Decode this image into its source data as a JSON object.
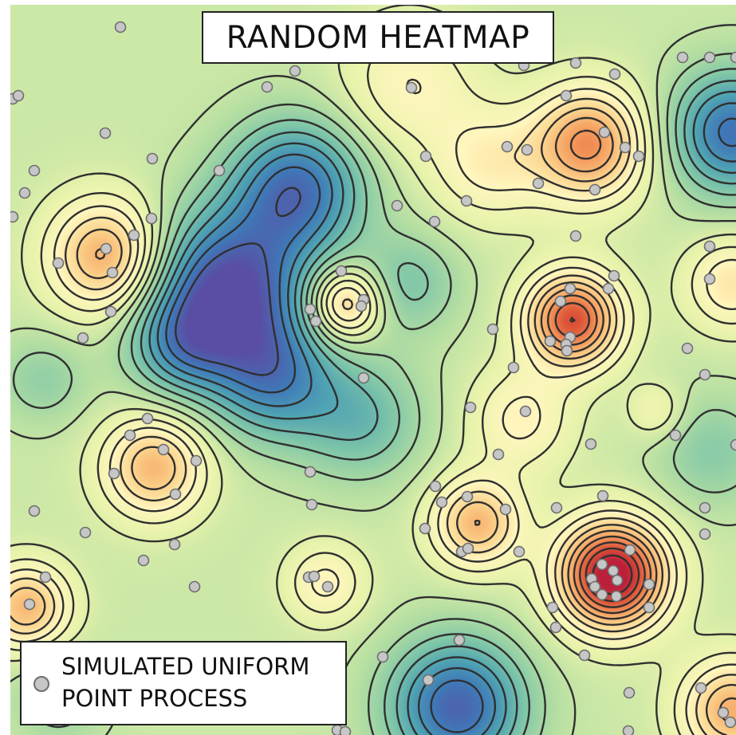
{
  "title": "RANDOM HEATMAP",
  "legend": {
    "line1": "SIMULATED UNIFORM",
    "line2": "POINT PROCESS"
  },
  "colors": {
    "palette_low_to_high": [
      "#5a4da4",
      "#3f79b8",
      "#4fa3b3",
      "#7fc6a8",
      "#b4dea2",
      "#e8f3ab",
      "#fff6be",
      "#fbd38c",
      "#f59e5e",
      "#dd5538",
      "#bc1f3a"
    ],
    "contour_line": "#303030",
    "point_fill": "#c6c6c6",
    "point_stroke": "#6e6e6e"
  },
  "map": {
    "description_type": "kernel-density style surface with contour lines",
    "low_areas": [
      "blue trough center-left",
      "blue patch right edge",
      "blue patch bottom center"
    ],
    "high_areas": [
      "orange peak upper right",
      "red peak center right",
      "deep red peak lower right",
      "orange peaks on left side"
    ]
  }
}
